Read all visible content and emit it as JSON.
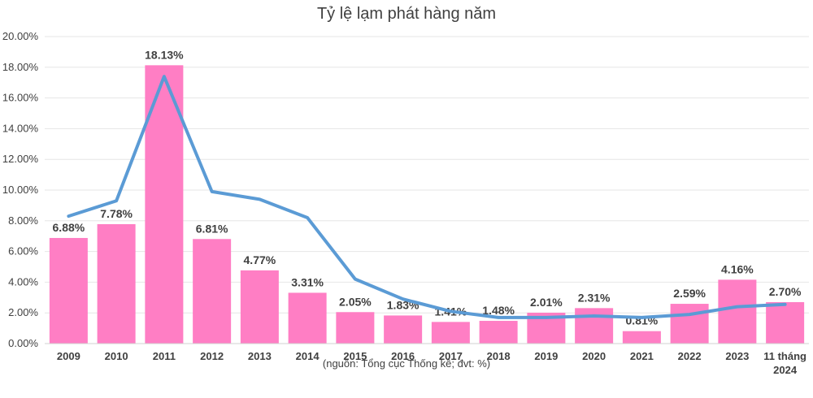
{
  "chart_data": {
    "type": "bar",
    "title": "Tỷ lệ lạm phát hàng năm",
    "source_note": "(nguồn: Tổng cục Thống kê; đvt: %)",
    "categories": [
      "2009",
      "2010",
      "2011",
      "2012",
      "2013",
      "2014",
      "2015",
      "2016",
      "2017",
      "2018",
      "2019",
      "2020",
      "2021",
      "2022",
      "2023",
      "11 tháng 2024"
    ],
    "series": [
      {
        "type": "bar",
        "values": [
          6.88,
          7.78,
          18.13,
          6.81,
          4.77,
          3.31,
          2.05,
          1.83,
          1.41,
          1.48,
          2.01,
          2.31,
          0.81,
          2.59,
          4.16,
          2.7
        ],
        "data_labels": [
          "6.88%",
          "7.78%",
          "18.13%",
          "6.81%",
          "4.77%",
          "3.31%",
          "2.05%",
          "1.83%",
          "1.41%",
          "1.48%",
          "2.01%",
          "2.31%",
          "0.81%",
          "2.59%",
          "4.16%",
          "2.70%"
        ]
      },
      {
        "type": "line",
        "values": [
          8.3,
          9.3,
          17.4,
          9.9,
          9.4,
          8.2,
          4.2,
          2.9,
          2.1,
          1.7,
          1.7,
          1.8,
          1.7,
          1.9,
          2.4,
          2.55
        ]
      }
    ],
    "ylim": [
      0,
      20
    ],
    "yticks": [
      "0.00%",
      "2.00%",
      "4.00%",
      "6.00%",
      "8.00%",
      "10.00%",
      "12.00%",
      "14.00%",
      "16.00%",
      "18.00%",
      "20.00%"
    ],
    "grid": true,
    "colors": {
      "bar": "#ff7ec4",
      "line": "#5b9bd5",
      "grid": "#e6e6e6",
      "text": "#404040"
    }
  }
}
